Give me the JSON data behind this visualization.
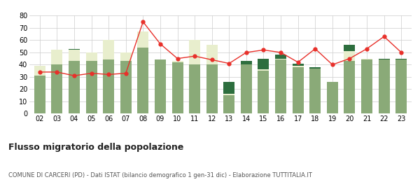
{
  "years": [
    "02",
    "03",
    "04",
    "05",
    "06",
    "07",
    "08",
    "09",
    "10",
    "11",
    "12",
    "13",
    "14",
    "15",
    "16",
    "17",
    "18",
    "19",
    "20",
    "21",
    "22",
    "23"
  ],
  "iscritti_altri_comuni": [
    31,
    40,
    43,
    43,
    44,
    43,
    54,
    44,
    42,
    40,
    40,
    15,
    40,
    35,
    44,
    38,
    37,
    26,
    43,
    44,
    44,
    44
  ],
  "iscritti_estero": [
    8,
    12,
    9,
    7,
    10,
    7,
    13,
    0,
    0,
    0,
    0,
    1,
    0,
    1,
    1,
    1,
    0,
    0,
    8,
    1,
    0,
    0
  ],
  "iscritti_altri": [
    0,
    0,
    1,
    0,
    0,
    0,
    0,
    0,
    0,
    0,
    0,
    10,
    3,
    9,
    3,
    2,
    1,
    0,
    5,
    0,
    1,
    1
  ],
  "estero_extra": [
    0,
    0,
    0,
    0,
    6,
    0,
    0,
    0,
    1,
    20,
    16,
    0,
    0,
    0,
    0,
    0,
    0,
    0,
    0,
    0,
    0,
    0
  ],
  "cancellati": [
    34,
    34,
    31,
    33,
    32,
    33,
    75,
    57,
    45,
    47,
    44,
    41,
    50,
    52,
    50,
    42,
    53,
    40,
    45,
    53,
    63,
    50
  ],
  "color_bar1": "#8aaa78",
  "color_bar2": "#e8eecd",
  "color_bar3": "#2d6e3e",
  "color_line": "#e8302a",
  "bg_color": "#ffffff",
  "grid_color": "#cccccc",
  "ylim": [
    0,
    80
  ],
  "yticks": [
    0,
    10,
    20,
    30,
    40,
    50,
    60,
    70,
    80
  ],
  "title": "Flusso migratorio della popolazione",
  "subtitle": "COMUNE DI CARCERI (PD) - Dati ISTAT (bilancio demografico 1 gen-31 dic) - Elaborazione TUTTITALIA.IT"
}
